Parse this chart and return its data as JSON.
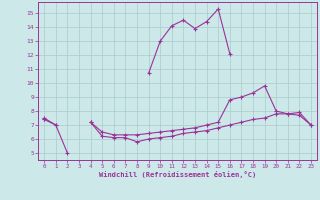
{
  "xlabel": "Windchill (Refroidissement éolien,°C)",
  "background_color": "#cce8e8",
  "grid_color": "#aacccc",
  "line_color": "#993399",
  "xlim": [
    -0.5,
    23.5
  ],
  "ylim": [
    4.5,
    15.8
  ],
  "xticks": [
    0,
    1,
    2,
    3,
    4,
    5,
    6,
    7,
    8,
    9,
    10,
    11,
    12,
    13,
    14,
    15,
    16,
    17,
    18,
    19,
    20,
    21,
    22,
    23
  ],
  "yticks": [
    5,
    6,
    7,
    8,
    9,
    10,
    11,
    12,
    13,
    14,
    15
  ],
  "curve1_x": [
    0,
    1,
    2,
    3,
    4,
    5,
    6,
    7,
    8,
    9,
    10,
    11,
    12,
    13,
    14,
    15,
    16,
    17,
    18,
    19,
    20,
    21,
    22,
    23
  ],
  "curve1_y": [
    7.5,
    7.0,
    null,
    null,
    null,
    null,
    null,
    null,
    null,
    10.7,
    13.0,
    14.1,
    14.5,
    13.9,
    14.4,
    15.3,
    12.1,
    null,
    null,
    null,
    null,
    null,
    null,
    null
  ],
  "curve2_x": [
    0,
    1,
    2,
    3,
    4,
    5,
    6,
    7,
    8,
    9,
    10,
    11,
    12,
    13,
    14,
    15,
    16,
    17,
    18,
    19,
    20,
    21,
    22,
    23
  ],
  "curve2_y": [
    7.4,
    null,
    null,
    null,
    7.2,
    6.5,
    6.3,
    6.3,
    6.3,
    6.4,
    6.5,
    6.6,
    6.7,
    6.8,
    7.0,
    7.2,
    8.8,
    9.0,
    9.3,
    9.8,
    8.0,
    7.8,
    7.7,
    7.0
  ],
  "curve3_x": [
    0,
    1,
    2,
    3,
    4,
    5,
    6,
    7,
    8,
    9,
    10,
    11,
    12,
    13,
    14,
    15,
    16,
    17,
    18,
    19,
    20,
    21,
    22,
    23
  ],
  "curve3_y": [
    7.4,
    7.0,
    5.0,
    null,
    7.2,
    6.2,
    6.1,
    6.1,
    5.8,
    6.0,
    6.1,
    6.2,
    6.4,
    6.5,
    6.6,
    6.8,
    7.0,
    7.2,
    7.4,
    7.5,
    7.8,
    7.8,
    7.9,
    7.0
  ]
}
